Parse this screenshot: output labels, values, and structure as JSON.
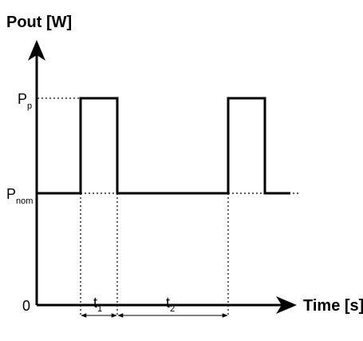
{
  "axes": {
    "y_label": "Pout [W]",
    "x_label": "Time [s]",
    "origin_label": "0"
  },
  "levels": {
    "peak": {
      "main": "P",
      "sub": "p"
    },
    "nominal": {
      "main": "P",
      "sub": "nom"
    }
  },
  "intervals": [
    {
      "main": "t",
      "sub": "1"
    },
    {
      "main": "t",
      "sub": "2"
    }
  ],
  "colors": {
    "line": "#000000",
    "background": "#ffffff"
  }
}
